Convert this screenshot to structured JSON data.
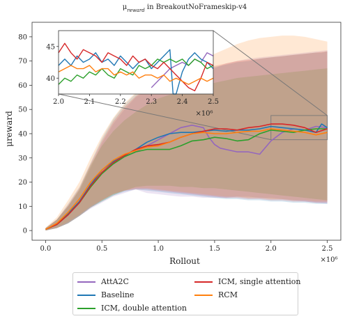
{
  "chart_data": {
    "type": "line",
    "title": "μ_reward in BreakoutNoFrameskip-v4",
    "title_display": "μreward in BreakoutNoFrameskip-v4",
    "xlabel": "Rollout",
    "ylabel": "μreward",
    "x_multiplier_label": "×10⁶",
    "xlim": [
      -0.12,
      2.62
    ],
    "ylim": [
      -4,
      86
    ],
    "x_ticks": [
      0.0,
      0.5,
      1.0,
      1.5,
      2.0,
      2.5
    ],
    "x_tick_labels": [
      "0.0",
      "0.5",
      "1.0",
      "1.5",
      "2.0",
      "2.5"
    ],
    "y_ticks": [
      0,
      10,
      20,
      30,
      40,
      50,
      60,
      70,
      80
    ],
    "y_tick_labels": [
      "0",
      "10",
      "20",
      "30",
      "40",
      "50",
      "60",
      "70",
      "80"
    ],
    "grid": false,
    "legend_position": "bottom-outside",
    "series": [
      {
        "name": "AttA2C",
        "color": "#9467bd",
        "x": [
          0.0,
          0.1,
          0.2,
          0.3,
          0.4,
          0.5,
          0.6,
          0.7,
          0.8,
          0.9,
          1.0,
          1.1,
          1.2,
          1.3,
          1.4,
          1.45,
          1.5,
          1.55,
          1.6,
          1.7,
          1.8,
          1.9,
          2.0,
          2.1,
          2.2,
          2.3,
          2.4,
          2.5
        ],
        "y": [
          0.5,
          2.5,
          6.5,
          11.5,
          18.5,
          23.5,
          27.5,
          30.5,
          32.5,
          35.0,
          37.5,
          40.0,
          42.5,
          43.5,
          42.5,
          38.5,
          35.5,
          34.0,
          33.5,
          32.5,
          32.5,
          31.5,
          37.0,
          40.5,
          42.0,
          41.5,
          43.0,
          42.5
        ],
        "band_low": [
          0.0,
          1.0,
          3.0,
          6.0,
          9.0,
          11.5,
          14.0,
          15.5,
          17.0,
          15.5,
          15.0,
          14.5,
          14.0,
          14.0,
          13.5,
          13.5,
          13.5,
          13.5,
          13.5,
          14.0,
          14.0,
          13.5,
          13.5,
          13.0,
          12.5,
          12.0,
          11.5,
          11.0
        ],
        "band_high": [
          1.0,
          4.5,
          10.0,
          16.5,
          26.0,
          36.0,
          44.0,
          50.0,
          55.0,
          58.0,
          60.0,
          61.0,
          62.0,
          63.0,
          64.0,
          65.0,
          67.0,
          68.0,
          69.0,
          70.0,
          71.0,
          71.5,
          72.0,
          72.5,
          73.0,
          73.5,
          74.0,
          74.5
        ]
      },
      {
        "name": "Baseline",
        "color": "#1f77b4",
        "x": [
          0.0,
          0.1,
          0.2,
          0.3,
          0.4,
          0.5,
          0.6,
          0.7,
          0.8,
          0.9,
          1.0,
          1.1,
          1.2,
          1.3,
          1.4,
          1.5,
          1.6,
          1.7,
          1.8,
          1.9,
          2.0,
          2.1,
          2.2,
          2.3,
          2.4,
          2.45,
          2.5
        ],
        "y": [
          0.5,
          2.5,
          7.0,
          12.0,
          19.0,
          25.0,
          28.5,
          31.0,
          33.5,
          36.5,
          38.5,
          40.0,
          40.5,
          40.5,
          41.0,
          41.5,
          41.0,
          41.5,
          41.5,
          42.0,
          43.0,
          42.5,
          42.0,
          41.5,
          40.5,
          44.0,
          42.5
        ],
        "band_low": [
          0.0,
          1.0,
          3.0,
          6.0,
          9.5,
          12.0,
          14.5,
          16.0,
          17.0,
          16.5,
          16.0,
          15.5,
          15.0,
          14.5,
          14.0,
          13.5,
          13.0,
          13.0,
          12.5,
          12.5,
          12.0,
          12.0,
          11.5,
          11.5,
          11.0,
          11.0,
          11.0
        ],
        "band_high": [
          1.0,
          4.5,
          11.0,
          18.0,
          28.0,
          38.0,
          46.0,
          52.0,
          56.5,
          59.5,
          62.0,
          63.5,
          64.5,
          65.5,
          66.5,
          67.5,
          68.5,
          69.5,
          70.0,
          71.0,
          71.5,
          72.0,
          72.5,
          73.0,
          73.5,
          73.5,
          74.0
        ]
      },
      {
        "name": "ICM, double attention",
        "color": "#2ca02c",
        "x": [
          0.0,
          0.1,
          0.2,
          0.3,
          0.4,
          0.5,
          0.6,
          0.7,
          0.8,
          0.9,
          1.0,
          1.1,
          1.2,
          1.3,
          1.4,
          1.5,
          1.6,
          1.7,
          1.8,
          1.9,
          2.0,
          2.1,
          2.2,
          2.3,
          2.4,
          2.5
        ],
        "y": [
          0.5,
          2.5,
          6.5,
          11.5,
          18.0,
          23.5,
          27.5,
          30.5,
          32.5,
          33.5,
          33.5,
          33.5,
          35.0,
          37.0,
          37.5,
          38.5,
          38.0,
          37.0,
          37.5,
          40.0,
          41.5,
          41.0,
          40.5,
          41.5,
          42.0,
          42.0
        ],
        "band_low": [
          0.0,
          1.0,
          3.0,
          6.0,
          9.5,
          12.0,
          14.5,
          16.5,
          18.0,
          18.5,
          18.5,
          18.5,
          18.0,
          18.0,
          17.5,
          17.5,
          17.0,
          16.5,
          16.0,
          15.5,
          15.0,
          14.5,
          14.0,
          13.5,
          13.0,
          12.5
        ],
        "band_high": [
          1.0,
          4.5,
          10.0,
          17.0,
          27.0,
          35.0,
          41.0,
          45.5,
          49.0,
          52.0,
          54.5,
          56.0,
          57.5,
          59.0,
          60.0,
          61.0,
          62.0,
          63.0,
          63.5,
          64.0,
          64.5,
          65.0,
          65.5,
          66.0,
          66.5,
          67.0
        ]
      },
      {
        "name": "ICM, single attention",
        "color": "#d62728",
        "x": [
          0.0,
          0.1,
          0.2,
          0.3,
          0.4,
          0.5,
          0.6,
          0.7,
          0.8,
          0.9,
          1.0,
          1.1,
          1.2,
          1.3,
          1.4,
          1.5,
          1.6,
          1.7,
          1.8,
          1.9,
          2.0,
          2.1,
          2.2,
          2.3,
          2.4,
          2.5
        ],
        "y": [
          0.5,
          2.5,
          6.5,
          11.5,
          18.5,
          24.0,
          28.0,
          31.0,
          33.5,
          35.0,
          35.5,
          36.5,
          38.5,
          40.0,
          41.0,
          42.0,
          42.0,
          41.5,
          42.5,
          43.0,
          44.0,
          44.0,
          43.5,
          42.5,
          40.5,
          42.0
        ],
        "band_low": [
          0.0,
          1.0,
          3.0,
          6.0,
          9.5,
          12.5,
          15.0,
          16.5,
          17.0,
          17.0,
          16.5,
          16.0,
          15.5,
          15.0,
          14.5,
          14.0,
          13.5,
          13.5,
          13.0,
          13.0,
          12.5,
          12.5,
          12.0,
          12.0,
          11.5,
          11.5
        ],
        "band_high": [
          1.0,
          4.5,
          10.5,
          17.5,
          27.5,
          37.0,
          45.0,
          51.0,
          55.5,
          58.5,
          61.0,
          62.5,
          64.0,
          65.5,
          67.0,
          68.0,
          69.0,
          70.0,
          70.5,
          71.0,
          71.5,
          72.0,
          72.5,
          73.0,
          73.5,
          74.0
        ]
      },
      {
        "name": "RCM",
        "color": "#ff7f0e",
        "x": [
          0.0,
          0.1,
          0.2,
          0.3,
          0.4,
          0.5,
          0.6,
          0.7,
          0.8,
          0.9,
          1.0,
          1.1,
          1.2,
          1.3,
          1.4,
          1.5,
          1.6,
          1.7,
          1.8,
          1.9,
          2.0,
          2.1,
          2.2,
          2.3,
          2.4,
          2.5
        ],
        "y": [
          0.5,
          3.0,
          7.5,
          13.0,
          20.0,
          25.0,
          29.0,
          31.5,
          33.0,
          34.5,
          35.0,
          36.5,
          38.5,
          40.0,
          40.5,
          40.0,
          40.0,
          40.5,
          41.0,
          41.0,
          42.0,
          41.5,
          41.0,
          40.5,
          39.5,
          40.5
        ],
        "band_low": [
          0.0,
          1.2,
          3.5,
          6.5,
          10.0,
          12.5,
          15.0,
          16.5,
          17.5,
          17.5,
          17.0,
          16.5,
          16.0,
          15.5,
          15.0,
          14.5,
          14.0,
          14.0,
          13.5,
          13.5,
          13.0,
          13.0,
          12.5,
          12.5,
          12.0,
          12.0
        ],
        "band_high": [
          1.2,
          5.5,
          12.5,
          20.0,
          30.0,
          39.0,
          46.5,
          52.5,
          57.0,
          60.5,
          63.0,
          65.0,
          67.0,
          69.0,
          71.0,
          73.0,
          75.0,
          77.0,
          78.5,
          79.5,
          80.0,
          80.5,
          80.5,
          80.0,
          79.0,
          78.0
        ]
      }
    ],
    "inset": {
      "xlim": [
        2.0,
        2.5
      ],
      "ylim": [
        37.5,
        47.5
      ],
      "x_ticks": [
        2.0,
        2.1,
        2.2,
        2.3,
        2.4,
        2.5
      ],
      "x_tick_labels": [
        "2.0",
        "2.1",
        "2.2",
        "2.3",
        "2.4",
        "2.5"
      ],
      "y_ticks": [
        40,
        45
      ],
      "y_tick_labels": [
        "40",
        "45"
      ],
      "x_multiplier_label": "×10⁶",
      "series": [
        {
          "name": "AttA2C",
          "color": "#9467bd",
          "x": [
            2.3,
            2.32,
            2.34,
            2.36,
            2.38,
            2.4,
            2.42,
            2.44,
            2.46,
            2.48,
            2.5
          ],
          "y": [
            38.5,
            39.5,
            40.5,
            41.5,
            42.0,
            42.5,
            42.0,
            43.0,
            42.5,
            44.0,
            43.5
          ]
        },
        {
          "name": "Baseline",
          "color": "#1f77b4",
          "x": [
            2.0,
            2.02,
            2.04,
            2.06,
            2.08,
            2.1,
            2.12,
            2.14,
            2.16,
            2.18,
            2.2,
            2.22,
            2.24,
            2.26,
            2.28,
            2.3,
            2.32,
            2.34,
            2.36,
            2.37,
            2.38,
            2.4,
            2.42,
            2.44,
            2.46,
            2.48,
            2.5
          ],
          "y": [
            42.0,
            43.0,
            42.0,
            43.5,
            42.5,
            43.0,
            44.0,
            42.5,
            43.0,
            42.0,
            43.5,
            42.5,
            41.5,
            42.5,
            43.0,
            41.5,
            42.5,
            43.5,
            44.5,
            37.5,
            37.5,
            41.0,
            43.0,
            44.0,
            43.0,
            42.5,
            41.5
          ]
        },
        {
          "name": "ICM, double attention",
          "color": "#2ca02c",
          "x": [
            2.0,
            2.02,
            2.04,
            2.06,
            2.08,
            2.1,
            2.12,
            2.14,
            2.16,
            2.18,
            2.2,
            2.22,
            2.24,
            2.26,
            2.28,
            2.3,
            2.32,
            2.34,
            2.36,
            2.38,
            2.4,
            2.42,
            2.44,
            2.46,
            2.48,
            2.5
          ],
          "y": [
            39.0,
            40.0,
            39.5,
            40.5,
            40.0,
            41.0,
            40.5,
            41.5,
            40.5,
            40.0,
            41.5,
            41.0,
            40.5,
            42.0,
            41.5,
            42.0,
            43.0,
            42.5,
            43.0,
            42.5,
            43.0,
            42.0,
            43.0,
            42.5,
            41.5,
            42.0
          ]
        },
        {
          "name": "ICM, single attention",
          "color": "#d62728",
          "x": [
            2.0,
            2.02,
            2.04,
            2.06,
            2.08,
            2.1,
            2.12,
            2.14,
            2.16,
            2.18,
            2.2,
            2.22,
            2.24,
            2.26,
            2.28,
            2.3,
            2.32,
            2.34,
            2.36,
            2.38,
            2.4,
            2.42,
            2.44,
            2.46,
            2.48,
            2.5
          ],
          "y": [
            44.0,
            45.5,
            44.0,
            43.0,
            44.5,
            44.0,
            43.5,
            42.5,
            44.0,
            43.5,
            43.0,
            42.0,
            43.5,
            42.5,
            43.0,
            42.0,
            41.5,
            42.5,
            41.5,
            40.5,
            39.5,
            38.5,
            38.0,
            40.0,
            42.5,
            42.0
          ]
        },
        {
          "name": "RCM",
          "color": "#ff7f0e",
          "x": [
            2.0,
            2.02,
            2.04,
            2.06,
            2.08,
            2.1,
            2.12,
            2.14,
            2.16,
            2.18,
            2.2,
            2.22,
            2.24,
            2.26,
            2.28,
            2.3,
            2.32,
            2.34,
            2.36,
            2.38,
            2.4,
            2.42,
            2.44,
            2.46,
            2.48,
            2.5
          ],
          "y": [
            41.0,
            41.5,
            42.0,
            41.5,
            41.5,
            42.0,
            41.0,
            41.5,
            41.5,
            40.5,
            41.0,
            40.5,
            41.0,
            40.0,
            40.5,
            40.5,
            40.0,
            40.5,
            39.5,
            40.0,
            39.5,
            39.0,
            39.5,
            40.0,
            39.5,
            40.0
          ]
        }
      ]
    }
  }
}
